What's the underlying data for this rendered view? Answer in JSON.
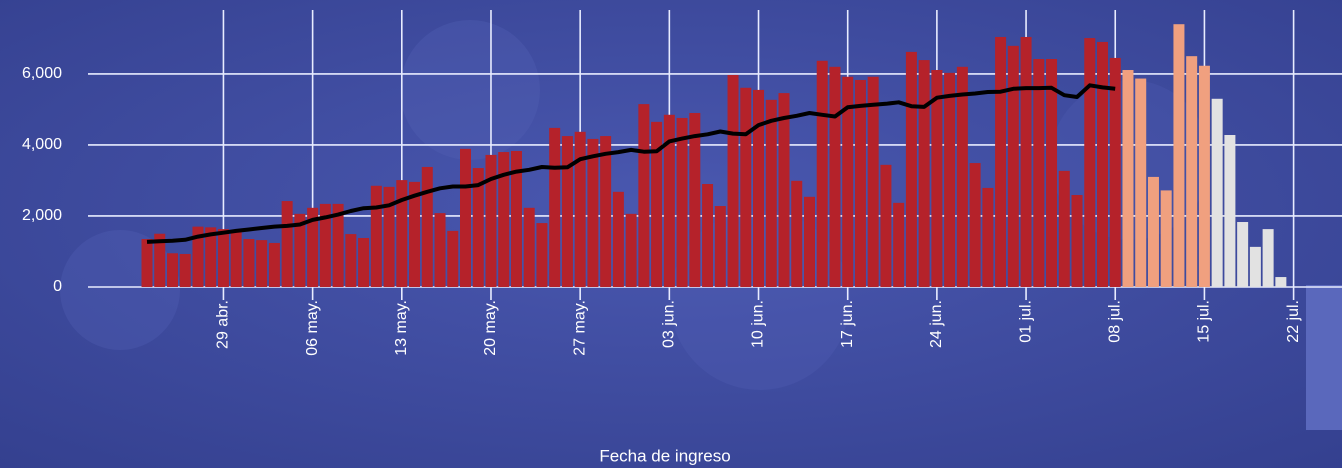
{
  "chart_data": {
    "type": "bar",
    "x_label": "Fecha de ingreso",
    "categories": [
      null,
      null,
      null,
      null,
      null,
      null,
      "29 abr.",
      null,
      null,
      null,
      null,
      null,
      null,
      "06 may.",
      null,
      null,
      null,
      null,
      null,
      null,
      "13 may.",
      null,
      null,
      null,
      null,
      null,
      null,
      "20 may.",
      null,
      null,
      null,
      null,
      null,
      null,
      "27 may.",
      null,
      null,
      null,
      null,
      null,
      null,
      "03 jun.",
      null,
      null,
      null,
      null,
      null,
      null,
      "10 jun.",
      null,
      null,
      null,
      null,
      null,
      null,
      "17 jun.",
      null,
      null,
      null,
      null,
      null,
      null,
      "24 jun.",
      null,
      null,
      null,
      null,
      null,
      null,
      "01 jul.",
      null,
      null,
      null,
      null,
      null,
      null,
      "08 jul.",
      null,
      null,
      null,
      null,
      null,
      null,
      "15 jul.",
      null,
      null,
      null,
      null,
      null,
      null,
      "22 jul."
    ],
    "series": [
      {
        "color": "#b5222a",
        "values": [
          1350,
          1500,
          950,
          930,
          1700,
          1680,
          1630,
          1580,
          1350,
          1320,
          1240,
          2420,
          2060,
          2230,
          2340,
          2340,
          1490,
          1380,
          2850,
          2820,
          3010,
          2960,
          3380,
          2080,
          1580,
          3890,
          3350,
          3720,
          3800,
          3830,
          2230,
          1800,
          4480,
          4250,
          4370,
          4170,
          4250,
          2680,
          2060,
          5150,
          4650,
          4850,
          4760,
          4900,
          2900,
          2280,
          5970,
          5610,
          5550,
          5270,
          5460,
          2990,
          2540,
          6370,
          6200,
          5920,
          5830,
          5920,
          3440,
          2370,
          6620,
          6390,
          6110,
          6030,
          6200,
          3490,
          2790,
          7040,
          6790,
          7040,
          6420,
          6420,
          3270,
          2590,
          7010,
          6900,
          6450,
          null,
          null,
          null,
          null,
          null,
          null,
          null,
          null,
          null,
          null,
          null,
          null,
          null,
          null
        ]
      },
      {
        "color": "#f0a07f",
        "values": [
          null,
          null,
          null,
          null,
          null,
          null,
          null,
          null,
          null,
          null,
          null,
          null,
          null,
          null,
          null,
          null,
          null,
          null,
          null,
          null,
          null,
          null,
          null,
          null,
          null,
          null,
          null,
          null,
          null,
          null,
          null,
          null,
          null,
          null,
          null,
          null,
          null,
          null,
          null,
          null,
          null,
          null,
          null,
          null,
          null,
          null,
          null,
          null,
          null,
          null,
          null,
          null,
          null,
          null,
          null,
          null,
          null,
          null,
          null,
          null,
          null,
          null,
          null,
          null,
          null,
          null,
          null,
          null,
          null,
          null,
          null,
          null,
          null,
          null,
          null,
          null,
          null,
          6110,
          5870,
          3100,
          2720,
          7400,
          6500,
          6230,
          null,
          null,
          null,
          null,
          null,
          null,
          null
        ]
      },
      {
        "color": "#e2e2e2",
        "values": [
          null,
          null,
          null,
          null,
          null,
          null,
          null,
          null,
          null,
          null,
          null,
          null,
          null,
          null,
          null,
          null,
          null,
          null,
          null,
          null,
          null,
          null,
          null,
          null,
          null,
          null,
          null,
          null,
          null,
          null,
          null,
          null,
          null,
          null,
          null,
          null,
          null,
          null,
          null,
          null,
          null,
          null,
          null,
          null,
          null,
          null,
          null,
          null,
          null,
          null,
          null,
          null,
          null,
          null,
          null,
          null,
          null,
          null,
          null,
          null,
          null,
          null,
          null,
          null,
          null,
          null,
          null,
          null,
          null,
          null,
          null,
          null,
          null,
          null,
          null,
          null,
          null,
          null,
          null,
          null,
          null,
          null,
          null,
          null,
          5300,
          4280,
          1830,
          1130,
          1630,
          280,
          null
        ]
      },
      {
        "type": "line",
        "color": "#000000",
        "values": [
          1270,
          1290,
          1300,
          1330,
          1420,
          1480,
          1530,
          1580,
          1620,
          1660,
          1700,
          1720,
          1760,
          1890,
          1960,
          2040,
          2140,
          2220,
          2240,
          2300,
          2450,
          2570,
          2680,
          2780,
          2830,
          2830,
          2870,
          3040,
          3160,
          3250,
          3300,
          3380,
          3360,
          3370,
          3600,
          3680,
          3750,
          3800,
          3860,
          3810,
          3820,
          4100,
          4180,
          4250,
          4300,
          4380,
          4320,
          4300,
          4560,
          4680,
          4760,
          4820,
          4900,
          4850,
          4800,
          5060,
          5100,
          5130,
          5160,
          5200,
          5090,
          5070,
          5330,
          5380,
          5420,
          5450,
          5490,
          5500,
          5580,
          5600,
          5600,
          5610,
          5400,
          5350,
          5680,
          5620,
          5580,
          null,
          null,
          null,
          null,
          null,
          null,
          null,
          null,
          null,
          null,
          null,
          null,
          null,
          null
        ]
      }
    ],
    "ylim": [
      0,
      7800
    ],
    "yticks": [
      0,
      {
        "value": 2000,
        "label": "2,000"
      },
      {
        "value": 4000,
        "label": "4,000"
      },
      {
        "value": 6000,
        "label": "6,000"
      }
    ],
    "grid": true
  }
}
